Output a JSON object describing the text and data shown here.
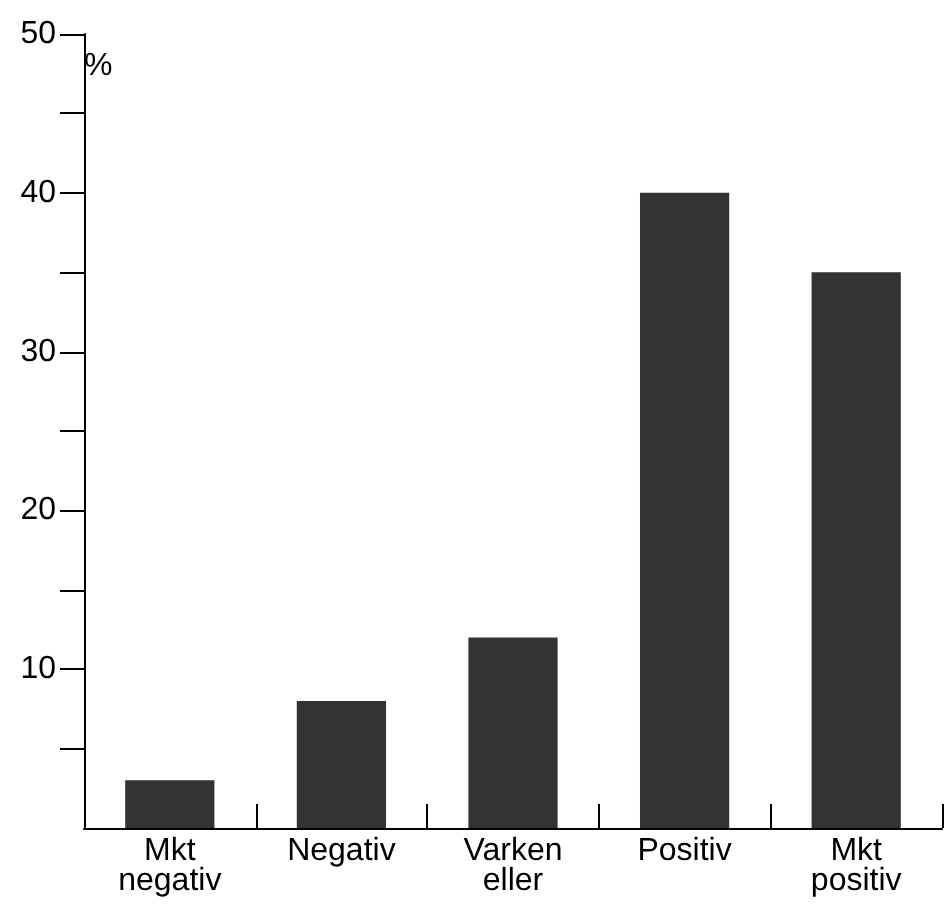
{
  "chart_data": {
    "type": "bar",
    "ylabel": "%",
    "categories": [
      "Mkt\nnegativ",
      "Negativ",
      "Varken\neller",
      "Positiv",
      "Mkt\npositiv"
    ],
    "values": [
      3,
      8,
      12,
      40,
      35
    ],
    "color": "#333333",
    "ylim": [
      0,
      50
    ],
    "yticks": [
      {
        "value": 5,
        "label": null
      },
      10,
      {
        "value": 15,
        "label": null
      },
      20,
      {
        "value": 25,
        "label": null
      },
      30,
      {
        "value": 35,
        "label": null
      },
      40,
      {
        "value": 45,
        "label": null
      },
      50
    ],
    "grid": false
  }
}
